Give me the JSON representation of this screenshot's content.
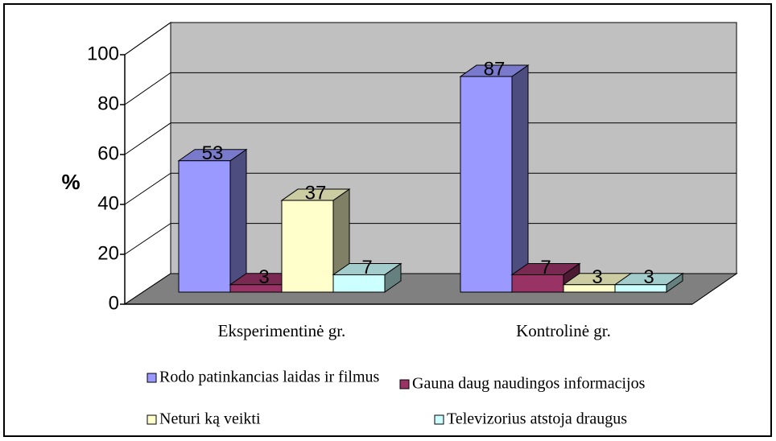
{
  "chart_data": {
    "type": "bar3d",
    "y_label": "%",
    "categories": [
      "Eksperimentinė gr.",
      "Kontrolinė gr."
    ],
    "series": [
      {
        "name": "Rodo patinkancias laidas ir filmus",
        "color": "#9999ff",
        "values": [
          53,
          87
        ]
      },
      {
        "name": "Gauna daug naudingos informacijos",
        "color": "#993366",
        "values": [
          3,
          7
        ]
      },
      {
        "name": "Neturi ką veikti",
        "color": "#ffffcc",
        "values": [
          37,
          3
        ]
      },
      {
        "name": "Televizorius atstoja draugus",
        "color": "#ccffff",
        "values": [
          7,
          3
        ]
      }
    ],
    "ylim": [
      0,
      100
    ],
    "yticks": [
      0,
      20,
      40,
      60,
      80,
      100
    ],
    "grid": true
  }
}
